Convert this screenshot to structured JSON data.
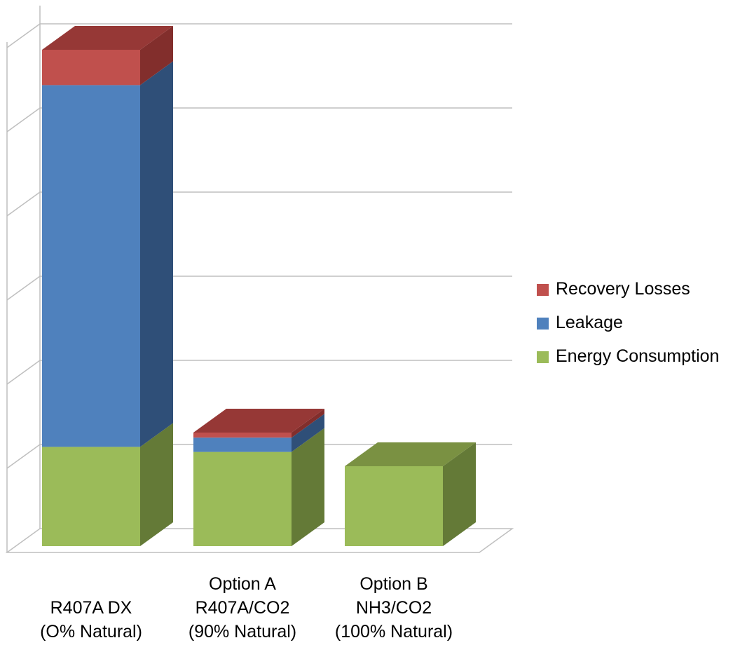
{
  "chart_data": {
    "type": "bar",
    "stacked": true,
    "three_d": true,
    "categories": [
      [
        "R407A DX",
        "(O% Natural)"
      ],
      [
        "Option A",
        "R407A/CO2",
        "(90% Natural)"
      ],
      [
        "Option B",
        "NH3/CO2",
        "(100% Natural)"
      ]
    ],
    "series": [
      {
        "name": "Energy Consumption",
        "values": [
          1.18,
          1.12,
          0.95
        ],
        "color": "#9bbb59",
        "side_color": "#647a37",
        "top_color": "#7a9142"
      },
      {
        "name": "Leakage",
        "values": [
          4.3,
          0.17,
          0
        ],
        "color": "#4f81bd",
        "side_color": "#2f4f78",
        "top_color": "#3a6090"
      },
      {
        "name": "Recovery Losses",
        "values": [
          0.42,
          0.06,
          0
        ],
        "color": "#c0504d",
        "side_color": "#822e2c",
        "top_color": "#963836"
      }
    ],
    "ylim": [
      0,
      6
    ],
    "gridlines": 6,
    "grid": true,
    "legend_position": "right"
  },
  "legend": {
    "items": [
      {
        "label": "Recovery Losses",
        "color": "#c0504d"
      },
      {
        "label": "Leakage",
        "color": "#4f81bd"
      },
      {
        "label": "Energy Consumption",
        "color": "#9bbb59"
      }
    ]
  }
}
